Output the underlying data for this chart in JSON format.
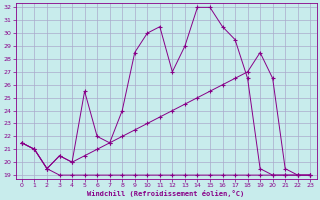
{
  "xlabel": "Windchill (Refroidissement éolien,°C)",
  "bg_color": "#c8ecec",
  "grid_color": "#aaaacc",
  "line_color": "#880088",
  "xlim": [
    -0.5,
    23.5
  ],
  "ylim": [
    18.7,
    32.3
  ],
  "xticks": [
    0,
    1,
    2,
    3,
    4,
    5,
    6,
    7,
    8,
    9,
    10,
    11,
    12,
    13,
    14,
    15,
    16,
    17,
    18,
    19,
    20,
    21,
    22,
    23
  ],
  "yticks": [
    19,
    20,
    21,
    22,
    23,
    24,
    25,
    26,
    27,
    28,
    29,
    30,
    31,
    32
  ],
  "line1_x": [
    0,
    1,
    2,
    3,
    4,
    5,
    6,
    7,
    8,
    9,
    10,
    11,
    12,
    13,
    14,
    15,
    16,
    17,
    18,
    19,
    20,
    21,
    22,
    23
  ],
  "line1_y": [
    21.5,
    21.0,
    19.5,
    19.0,
    19.0,
    19.0,
    19.0,
    19.0,
    19.0,
    19.0,
    19.0,
    19.0,
    19.0,
    19.0,
    19.0,
    19.0,
    19.0,
    19.0,
    19.0,
    19.0,
    19.0,
    19.0,
    19.0,
    19.0
  ],
  "line2_x": [
    0,
    1,
    2,
    3,
    4,
    5,
    6,
    7,
    8,
    9,
    10,
    11,
    12,
    13,
    14,
    15,
    16,
    17,
    18,
    19,
    20,
    21,
    22,
    23
  ],
  "line2_y": [
    21.5,
    21.0,
    19.5,
    20.5,
    20.0,
    25.5,
    22.0,
    21.5,
    24.0,
    28.5,
    30.0,
    30.5,
    27.0,
    29.0,
    32.0,
    32.0,
    30.5,
    29.5,
    26.5,
    19.5,
    19.0,
    19.0,
    19.0,
    19.0
  ],
  "line3_x": [
    0,
    1,
    2,
    3,
    4,
    5,
    6,
    7,
    8,
    9,
    10,
    11,
    12,
    13,
    14,
    15,
    16,
    17,
    18,
    19,
    20,
    21,
    22,
    23
  ],
  "line3_y": [
    21.5,
    21.0,
    19.5,
    20.5,
    20.0,
    20.5,
    21.0,
    21.5,
    22.0,
    22.5,
    23.0,
    23.5,
    24.0,
    24.5,
    25.0,
    25.5,
    26.0,
    26.5,
    27.0,
    28.5,
    26.5,
    19.5,
    19.0,
    19.0
  ]
}
